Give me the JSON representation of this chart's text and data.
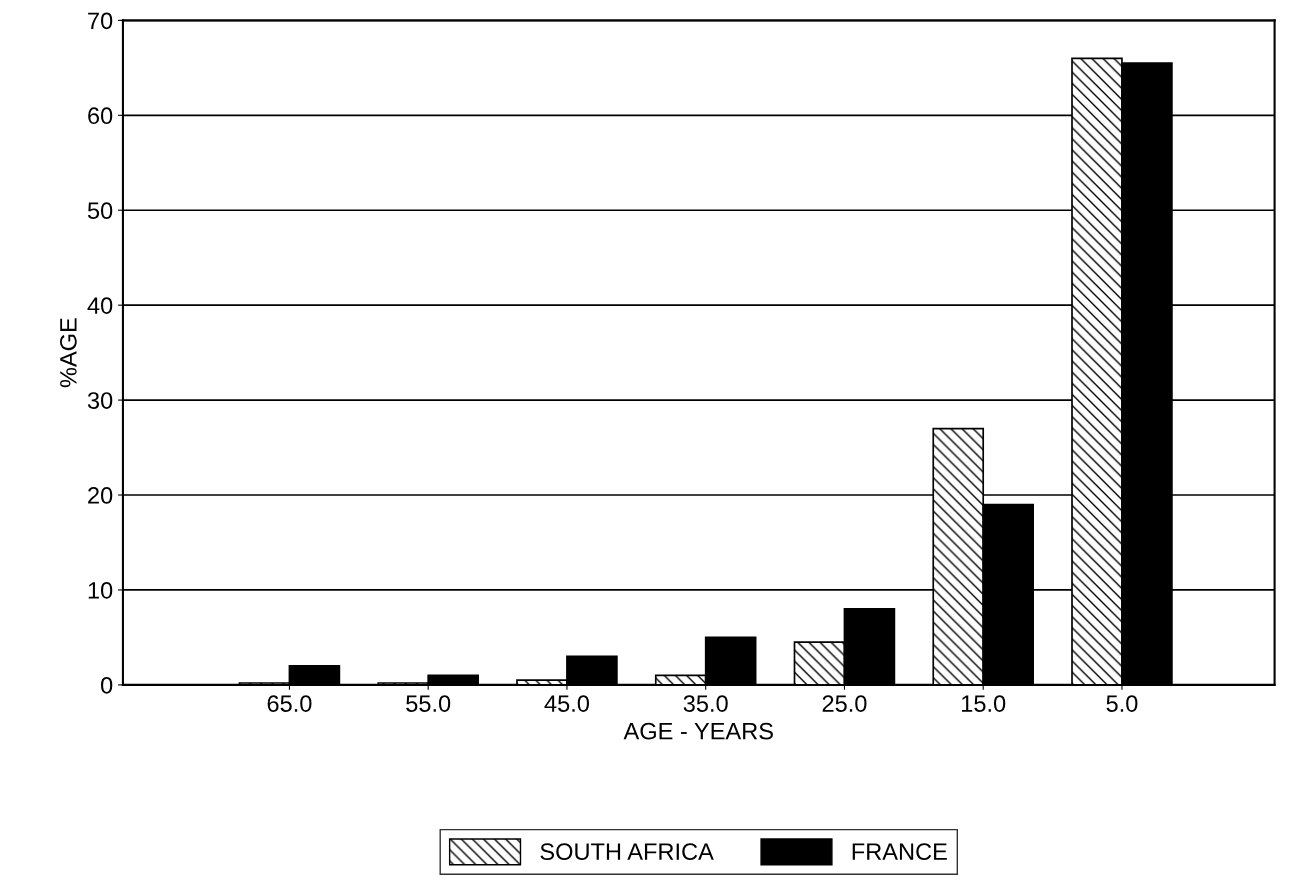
{
  "chart_data": {
    "type": "bar",
    "xlabel": "AGE - YEARS",
    "ylabel": "%AGE",
    "categories": [
      "65.0",
      "55.0",
      "45.0",
      "35.0",
      "25.0",
      "15.0",
      "5.0"
    ],
    "series": [
      {
        "name": "SOUTH AFRICA",
        "color": "#000000",
        "values": [
          0.2,
          0.2,
          0.5,
          1,
          4.5,
          27,
          66
        ]
      },
      {
        "name": "FRANCE",
        "color": "#000000",
        "values": [
          2,
          1,
          3,
          5,
          8,
          19,
          65.5
        ]
      }
    ],
    "ylim": [
      0,
      70
    ],
    "yticks": [
      0,
      10,
      20,
      30,
      40,
      50,
      60,
      70
    ],
    "grid": "y",
    "legend": "bottom"
  }
}
